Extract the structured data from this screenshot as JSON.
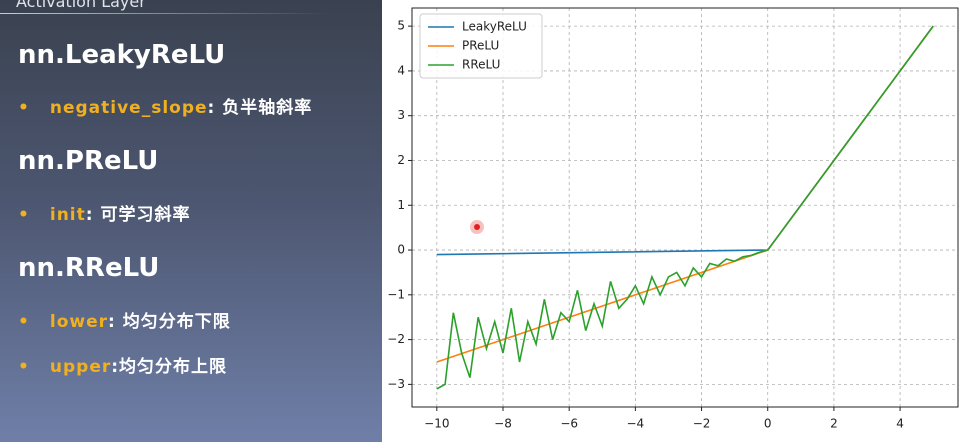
{
  "slide": {
    "header": "Activation Layer",
    "sections": [
      {
        "title": "nn.LeakyReLU",
        "bullets": [
          {
            "key": "negative_slope",
            "text": ": 负半轴斜率"
          }
        ]
      },
      {
        "title": "nn.PReLU",
        "bullets": [
          {
            "key": "init",
            "text": ": 可学习斜率"
          }
        ]
      },
      {
        "title": "nn.RReLU",
        "bullets": [
          {
            "key": "lower",
            "text": ": 均匀分布下限"
          },
          {
            "key": "upper",
            "text": ":均匀分布上限"
          }
        ]
      }
    ]
  },
  "chart_data": {
    "type": "line",
    "series": [
      {
        "name": "LeakyReLU",
        "color": "#1f77b4",
        "x": [
          -10,
          0,
          5
        ],
        "values": [
          -0.1,
          0,
          5
        ]
      },
      {
        "name": "PReLU",
        "color": "#ff7f0e",
        "x": [
          -10,
          0,
          5
        ],
        "values": [
          -2.5,
          0,
          5
        ]
      },
      {
        "name": "RReLU",
        "color": "#2ca02c",
        "x": [
          -10,
          -9.75,
          -9.5,
          -9.25,
          -9,
          -8.75,
          -8.5,
          -8.25,
          -8,
          -7.75,
          -7.5,
          -7.25,
          -7,
          -6.75,
          -6.5,
          -6.25,
          -6,
          -5.75,
          -5.5,
          -5.25,
          -5,
          -4.75,
          -4.5,
          -4.25,
          -4,
          -3.75,
          -3.5,
          -3.25,
          -3,
          -2.75,
          -2.5,
          -2.25,
          -2,
          -1.75,
          -1.5,
          -1.25,
          -1,
          -0.75,
          -0.5,
          -0.25,
          0,
          5
        ],
        "values": [
          -3.1,
          -3.0,
          -1.4,
          -2.3,
          -2.85,
          -1.5,
          -2.2,
          -1.6,
          -2.3,
          -1.3,
          -2.5,
          -1.6,
          -2.1,
          -1.1,
          -2.0,
          -1.4,
          -1.6,
          -0.9,
          -1.8,
          -1.2,
          -1.7,
          -0.7,
          -1.3,
          -1.1,
          -0.8,
          -1.2,
          -0.6,
          -1.0,
          -0.6,
          -0.5,
          -0.8,
          -0.4,
          -0.6,
          -0.3,
          -0.35,
          -0.2,
          -0.25,
          -0.15,
          -0.12,
          -0.05,
          0,
          5
        ]
      }
    ],
    "xlim": [
      -10.75,
      5.75
    ],
    "ylim": [
      -3.505,
      5.405
    ],
    "xticks": [
      {
        "value": -10,
        "label": "−10"
      },
      {
        "value": -8,
        "label": "−8"
      },
      {
        "value": -6,
        "label": "−6"
      },
      {
        "value": -4,
        "label": "−4"
      },
      {
        "value": -2,
        "label": "−2"
      },
      0,
      2,
      4
    ],
    "yticks": [
      {
        "value": -3,
        "label": "−3"
      },
      {
        "value": -2,
        "label": "−2"
      },
      {
        "value": -1,
        "label": "−1"
      },
      0,
      1,
      2,
      3,
      4,
      5
    ],
    "grid": true,
    "legend": "upper-left"
  }
}
